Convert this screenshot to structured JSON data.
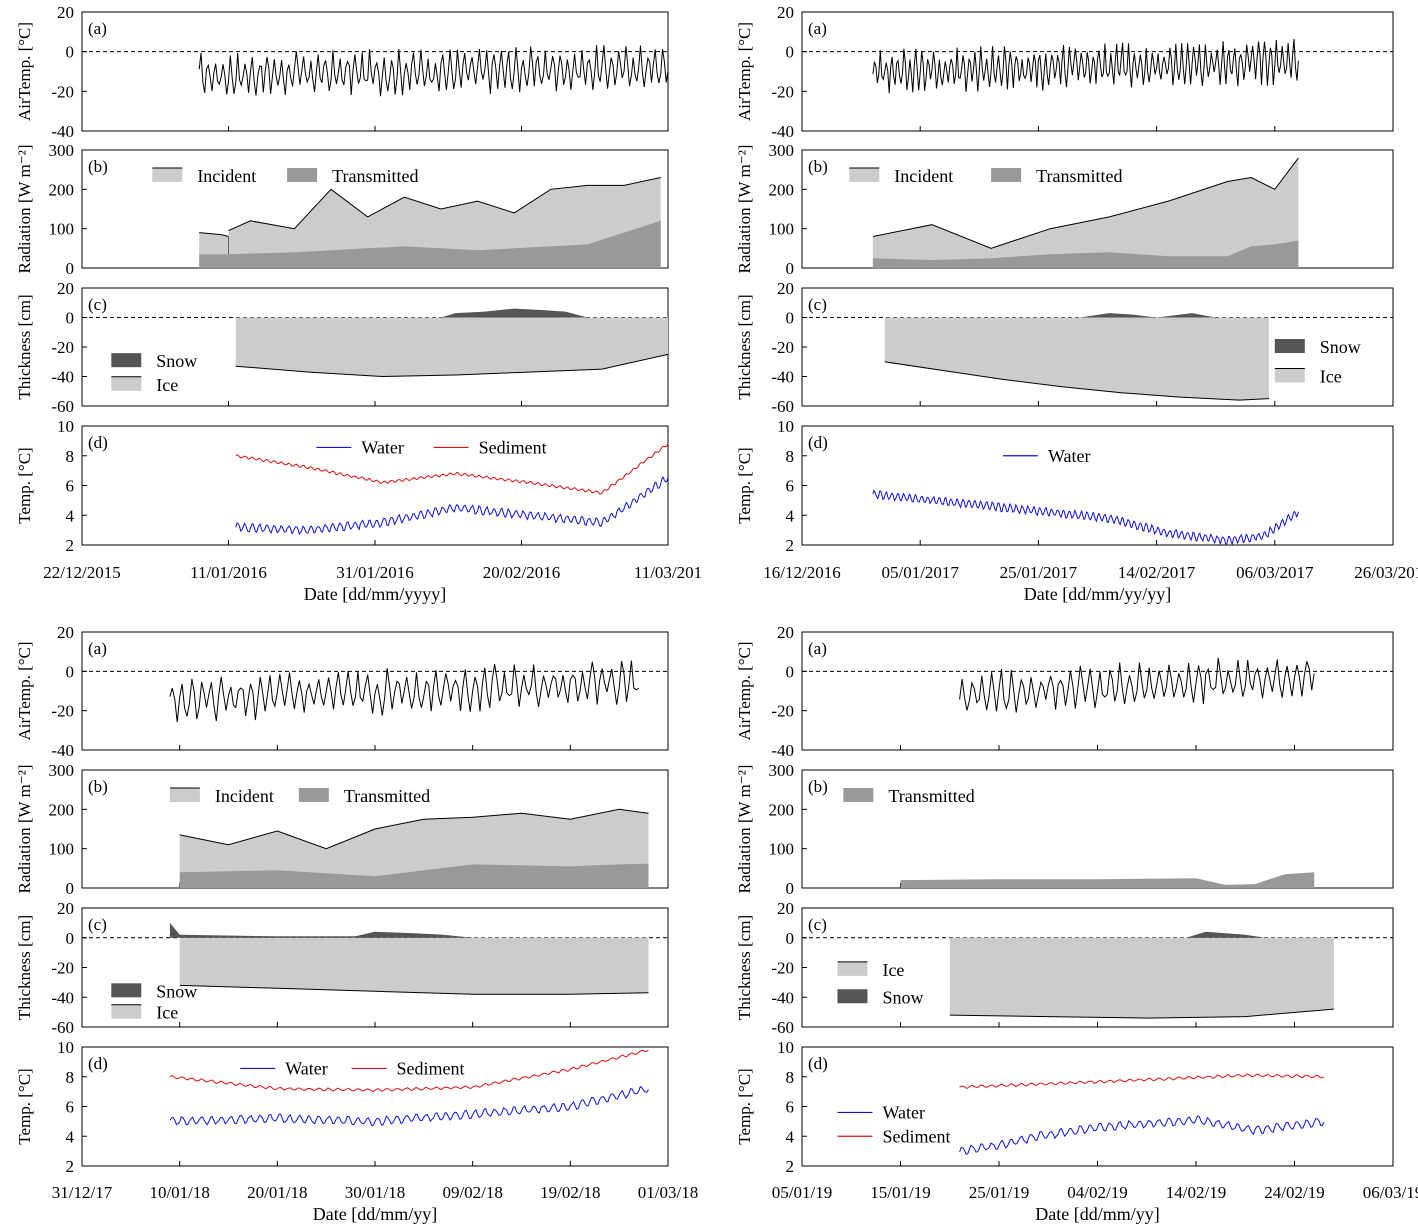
{
  "colors": {
    "air": "#000000",
    "incident_fill": "#cccccc",
    "transmitted_fill": "#999999",
    "ice_fill": "#cccccc",
    "snow_fill": "#555555",
    "water": "#1010e0",
    "sediment": "#e01010"
  },
  "chart_data": [
    {
      "type": "line",
      "title": "",
      "xlabel": "Date [dd/mm/yyyy]",
      "xticks": [
        "22/12/2015",
        "11/01/2016",
        "31/01/2016",
        "20/02/2016",
        "11/03/201"
      ],
      "xrange_days": [
        0,
        80
      ],
      "panels": [
        {
          "tag": "(a)",
          "ylabel": "AirTemp. [°C]",
          "ylim": [
            -40,
            20
          ],
          "yticks": [
            "20",
            "0",
            "-20",
            "-40"
          ],
          "legend": [],
          "series": [
            {
              "name": "",
              "kind": "air",
              "x": [
                16,
                80
              ],
              "y": [
                -12,
                -8
              ]
            }
          ]
        },
        {
          "tag": "(b)",
          "ylabel": "Radiation [W m⁻²]",
          "ylim": [
            0,
            300
          ],
          "yticks": [
            "300",
            "200",
            "100",
            "0"
          ],
          "legend": [
            "Incident",
            "Transmitted"
          ],
          "series": [
            {
              "name": "Incident",
              "kind": "incident",
              "x": [
                16,
                19,
                20,
                20
              ],
              "y": [
                90,
                85,
                80,
                0
              ]
            },
            {
              "name": "Incident",
              "kind": "incident",
              "x": [
                20,
                23,
                29,
                34,
                39,
                44,
                49,
                54,
                59,
                64,
                69,
                74,
                79
              ],
              "y": [
                95,
                120,
                100,
                200,
                130,
                180,
                150,
                170,
                140,
                200,
                210,
                210,
                230
              ]
            },
            {
              "name": "Transmitted",
              "kind": "transmitted",
              "x": [
                16,
                19,
                20,
                20
              ],
              "y": [
                35,
                35,
                35,
                0
              ]
            },
            {
              "name": "Transmitted",
              "kind": "transmitted",
              "x": [
                20,
                29,
                34,
                39,
                44,
                49,
                54,
                59,
                64,
                69,
                74,
                79
              ],
              "y": [
                35,
                40,
                45,
                50,
                55,
                50,
                45,
                50,
                55,
                60,
                90,
                120
              ]
            }
          ]
        },
        {
          "tag": "(c)",
          "ylabel": "Thickness [cm]",
          "ylim": [
            -60,
            20
          ],
          "yticks": [
            "20",
            "0",
            "-20",
            "-40",
            "-60"
          ],
          "legend": [
            "Snow",
            "Ice"
          ],
          "series": [
            {
              "name": "Ice",
              "kind": "ice",
              "x": [
                21,
                31,
                41,
                51,
                61,
                71,
                80
              ],
              "y": [
                -33,
                -37,
                -40,
                -39,
                -37,
                -35,
                -25
              ]
            },
            {
              "name": "Snow",
              "kind": "snow",
              "x": [
                49,
                51,
                55,
                59,
                63,
                66,
                69
              ],
              "y": [
                0,
                3,
                4,
                6,
                5,
                4,
                0
              ]
            }
          ]
        },
        {
          "tag": "(d)",
          "ylabel": "Temp. [°C]",
          "ylim": [
            2,
            10
          ],
          "yticks": [
            "10",
            "8",
            "6",
            "4",
            "2"
          ],
          "legend": [
            "Water",
            "Sediment"
          ],
          "series": [
            {
              "name": "Water",
              "kind": "water",
              "x": [
                21,
                31,
                41,
                51,
                61,
                71,
                80
              ],
              "y": [
                3.2,
                3.0,
                3.5,
                4.5,
                4.0,
                3.5,
                6.5
              ]
            },
            {
              "name": "Sediment",
              "kind": "sediment",
              "x": [
                21,
                31,
                41,
                51,
                61,
                71,
                80
              ],
              "y": [
                8.0,
                7.2,
                6.2,
                6.8,
                6.2,
                5.5,
                8.8
              ]
            }
          ]
        }
      ]
    },
    {
      "type": "line",
      "title": "",
      "xlabel": "Date [dd/mm/yy/yy]",
      "xticks": [
        "16/12/2016",
        "05/01/2017",
        "25/01/2017",
        "14/02/2017",
        "06/03/2017",
        "26/03/2017"
      ],
      "xrange_days": [
        0,
        100
      ],
      "panels": [
        {
          "tag": "(a)",
          "ylabel": "AirTemp. [°C]",
          "ylim": [
            -40,
            20
          ],
          "yticks": [
            "20",
            "0",
            "-20",
            "-40"
          ],
          "legend": [],
          "series": [
            {
              "name": "",
              "kind": "air",
              "x": [
                12,
                84
              ],
              "y": [
                -10,
                -5
              ]
            }
          ]
        },
        {
          "tag": "(b)",
          "ylabel": "Radiation [W m⁻²]",
          "ylim": [
            0,
            300
          ],
          "yticks": [
            "300",
            "200",
            "100",
            "0"
          ],
          "legend": [
            "Incident",
            "Transmitted"
          ],
          "series": [
            {
              "name": "Incident",
              "kind": "incident",
              "x": [
                12,
                22,
                32,
                42,
                52,
                62,
                72,
                76,
                80,
                84
              ],
              "y": [
                80,
                110,
                50,
                100,
                130,
                170,
                220,
                230,
                200,
                280
              ]
            },
            {
              "name": "Transmitted",
              "kind": "transmitted",
              "x": [
                12,
                22,
                32,
                42,
                52,
                62,
                72,
                76,
                80,
                84
              ],
              "y": [
                25,
                20,
                25,
                35,
                40,
                30,
                30,
                55,
                60,
                70
              ]
            }
          ]
        },
        {
          "tag": "(c)",
          "ylabel": "Thickness [cm]",
          "ylim": [
            -60,
            20
          ],
          "yticks": [
            "20",
            "0",
            "-20",
            "-40",
            "-60"
          ],
          "legend": [
            "Snow",
            "Ice"
          ],
          "series": [
            {
              "name": "Ice",
              "kind": "ice",
              "x": [
                14,
                24,
                34,
                44,
                54,
                64,
                74,
                79
              ],
              "y": [
                -30,
                -36,
                -42,
                -47,
                -51,
                -54,
                -56,
                -55
              ]
            },
            {
              "name": "Snow",
              "kind": "snow",
              "x": [
                47,
                52,
                56,
                60,
                66,
                70
              ],
              "y": [
                0,
                3,
                2,
                0,
                3,
                0
              ]
            }
          ]
        },
        {
          "tag": "(d)",
          "ylabel": "Temp. [°C]",
          "ylim": [
            2,
            10
          ],
          "yticks": [
            "10",
            "8",
            "6",
            "4",
            "2"
          ],
          "legend": [
            "Water"
          ],
          "series": [
            {
              "name": "Water",
              "kind": "water",
              "x": [
                12,
                22,
                32,
                42,
                52,
                62,
                72,
                78,
                84
              ],
              "y": [
                5.4,
                5.0,
                4.6,
                4.2,
                3.8,
                2.8,
                2.3,
                2.6,
                4.2
              ]
            }
          ]
        }
      ]
    },
    {
      "type": "line",
      "title": "",
      "xlabel": "Date [dd/mm/yy]",
      "xticks": [
        "31/12/17",
        "10/01/18",
        "20/01/18",
        "30/01/18",
        "09/02/18",
        "19/02/18",
        "01/03/18"
      ],
      "xrange_days": [
        0,
        60
      ],
      "panels": [
        {
          "tag": "(a)",
          "ylabel": "AirTemp. [°C]",
          "ylim": [
            -40,
            20
          ],
          "yticks": [
            "20",
            "0",
            "-20",
            "-40"
          ],
          "legend": [],
          "series": [
            {
              "name": "",
              "kind": "air",
              "x": [
                9,
                57
              ],
              "y": [
                -15,
                -5
              ]
            }
          ]
        },
        {
          "tag": "(b)",
          "ylabel": "Radiation [W m⁻²]",
          "ylim": [
            0,
            300
          ],
          "yticks": [
            "300",
            "200",
            "100",
            "0"
          ],
          "legend": [
            "Incident",
            "Transmitted"
          ],
          "series": [
            {
              "name": "Incident",
              "kind": "incident",
              "x": [
                10,
                15,
                20,
                25,
                30,
                35,
                40,
                45,
                50,
                55,
                58
              ],
              "y": [
                135,
                110,
                145,
                100,
                150,
                175,
                180,
                190,
                175,
                200,
                190
              ]
            },
            {
              "name": "Transmitted",
              "kind": "transmitted",
              "x": [
                10,
                20,
                30,
                40,
                50,
                55,
                58
              ],
              "y": [
                40,
                45,
                30,
                60,
                55,
                60,
                62
              ]
            }
          ]
        },
        {
          "tag": "(c)",
          "ylabel": "Thickness [cm]",
          "ylim": [
            -60,
            20
          ],
          "yticks": [
            "20",
            "0",
            "-20",
            "-40",
            "-60"
          ],
          "legend": [
            "Snow",
            "Ice"
          ],
          "series": [
            {
              "name": "Ice",
              "kind": "ice",
              "x": [
                10,
                20,
                30,
                40,
                50,
                58
              ],
              "y": [
                -32,
                -34,
                -36,
                -38,
                -38,
                -37
              ]
            },
            {
              "name": "Snow",
              "kind": "snow",
              "x": [
                9,
                10,
                20,
                28,
                30,
                34,
                37,
                40
              ],
              "y": [
                10,
                2,
                1,
                1,
                4,
                3,
                2,
                0
              ]
            }
          ]
        },
        {
          "tag": "(d)",
          "ylabel": "Temp. [°C]",
          "ylim": [
            2,
            10
          ],
          "yticks": [
            "10",
            "8",
            "6",
            "4",
            "2"
          ],
          "legend": [
            "Water",
            "Sediment"
          ],
          "series": [
            {
              "name": "Water",
              "kind": "water",
              "x": [
                9,
                20,
                30,
                40,
                50,
                58
              ],
              "y": [
                5.0,
                5.2,
                5.0,
                5.5,
                6.0,
                7.2
              ]
            },
            {
              "name": "Sediment",
              "kind": "sediment",
              "x": [
                9,
                20,
                30,
                40,
                50,
                58
              ],
              "y": [
                8.0,
                7.2,
                7.1,
                7.3,
                8.5,
                9.8
              ]
            }
          ]
        }
      ]
    },
    {
      "type": "line",
      "title": "",
      "xlabel": "Date [dd/mm/yy]",
      "xticks": [
        "05/01/19",
        "15/01/19",
        "25/01/19",
        "04/02/19",
        "14/02/19",
        "24/02/19",
        "06/03/19"
      ],
      "xrange_days": [
        0,
        60
      ],
      "panels": [
        {
          "tag": "(a)",
          "ylabel": "AirTemp. [°C]",
          "ylim": [
            -40,
            20
          ],
          "yticks": [
            "20",
            "0",
            "-20",
            "-40"
          ],
          "legend": [],
          "series": [
            {
              "name": "",
              "kind": "air",
              "x": [
                16,
                52
              ],
              "y": [
                -12,
                -2
              ]
            }
          ]
        },
        {
          "tag": "(b)",
          "ylabel": "Radiation [W m⁻²]",
          "ylim": [
            0,
            300
          ],
          "yticks": [
            "300",
            "200",
            "100",
            "0"
          ],
          "legend": [
            "Transmitted"
          ],
          "series": [
            {
              "name": "Transmitted",
              "kind": "transmitted",
              "x": [
                10,
                20,
                30,
                40,
                43,
                46,
                49,
                52
              ],
              "y": [
                20,
                22,
                22,
                25,
                8,
                10,
                35,
                40
              ]
            }
          ]
        },
        {
          "tag": "(c)",
          "ylabel": "Thickness [cm]",
          "ylim": [
            -60,
            20
          ],
          "yticks": [
            "20",
            "0",
            "-20",
            "-40",
            "-60"
          ],
          "legend": [
            "Ice",
            "Snow"
          ],
          "series": [
            {
              "name": "Ice",
              "kind": "ice",
              "x": [
                15,
                25,
                35,
                45,
                54
              ],
              "y": [
                -52,
                -53,
                -54,
                -53,
                -48
              ]
            },
            {
              "name": "Snow",
              "kind": "snow",
              "x": [
                39,
                41,
                45,
                47
              ],
              "y": [
                0,
                4,
                2,
                0
              ]
            }
          ]
        },
        {
          "tag": "(d)",
          "ylabel": "Temp. [°C]",
          "ylim": [
            2,
            10
          ],
          "yticks": [
            "10",
            "8",
            "6",
            "4",
            "2"
          ],
          "legend": [
            "Water",
            "Sediment"
          ],
          "series": [
            {
              "name": "Water",
              "kind": "water",
              "x": [
                16,
                20,
                24,
                30,
                40,
                46,
                53
              ],
              "y": [
                3.0,
                3.4,
                4.0,
                4.6,
                5.1,
                4.4,
                5.0
              ]
            },
            {
              "name": "Sediment",
              "kind": "sediment",
              "x": [
                16,
                24,
                35,
                45,
                53
              ],
              "y": [
                7.3,
                7.5,
                7.8,
                8.1,
                8.0
              ]
            }
          ]
        }
      ]
    }
  ]
}
